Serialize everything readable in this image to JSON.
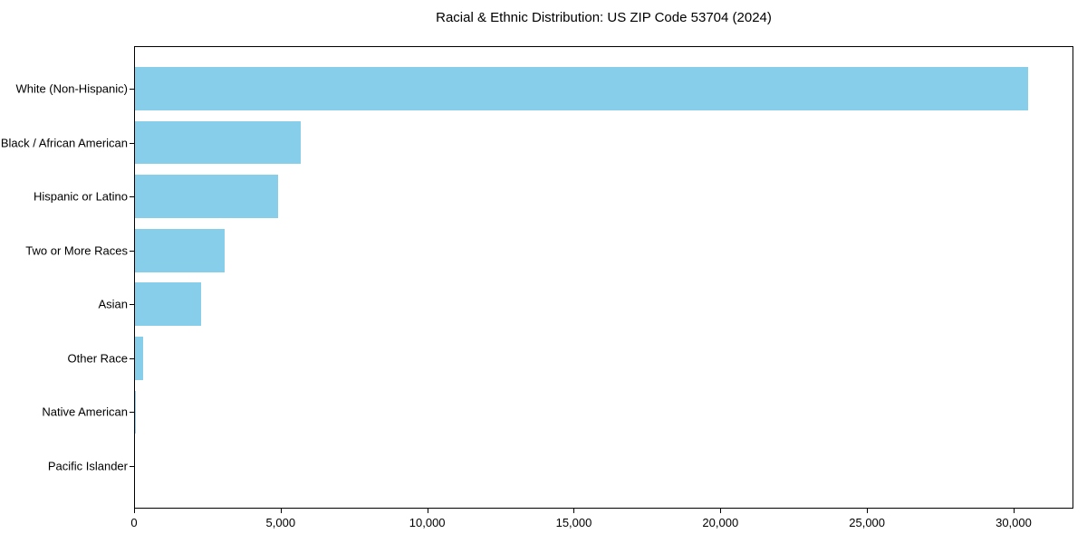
{
  "title": "Racial & Ethnic Distribution: US ZIP Code 53704 (2024)",
  "colors": {
    "bar_fill": "#87CEEB",
    "axis": "#000000",
    "text": "#000000",
    "background": "#FFFFFF"
  },
  "chart_data": {
    "type": "bar",
    "orientation": "horizontal",
    "title": "Racial & Ethnic Distribution: US ZIP Code 53704 (2024)",
    "categories": [
      "White (Non-Hispanic)",
      "Black / African American",
      "Hispanic or Latino",
      "Two or More Races",
      "Asian",
      "Other Race",
      "Native American",
      "Pacific Islander"
    ],
    "values": [
      30500,
      5700,
      4900,
      3100,
      2300,
      300,
      50,
      20
    ],
    "xlabel": "",
    "ylabel": "",
    "xlim": [
      0,
      32040
    ],
    "xticks": [
      0,
      5000,
      10000,
      15000,
      20000,
      25000,
      30000
    ],
    "xtick_labels": [
      "0",
      "5,000",
      "10,000",
      "15,000",
      "20,000",
      "25,000",
      "30,000"
    ],
    "grid": false,
    "legend": null,
    "bar_color": "#87CEEB"
  }
}
